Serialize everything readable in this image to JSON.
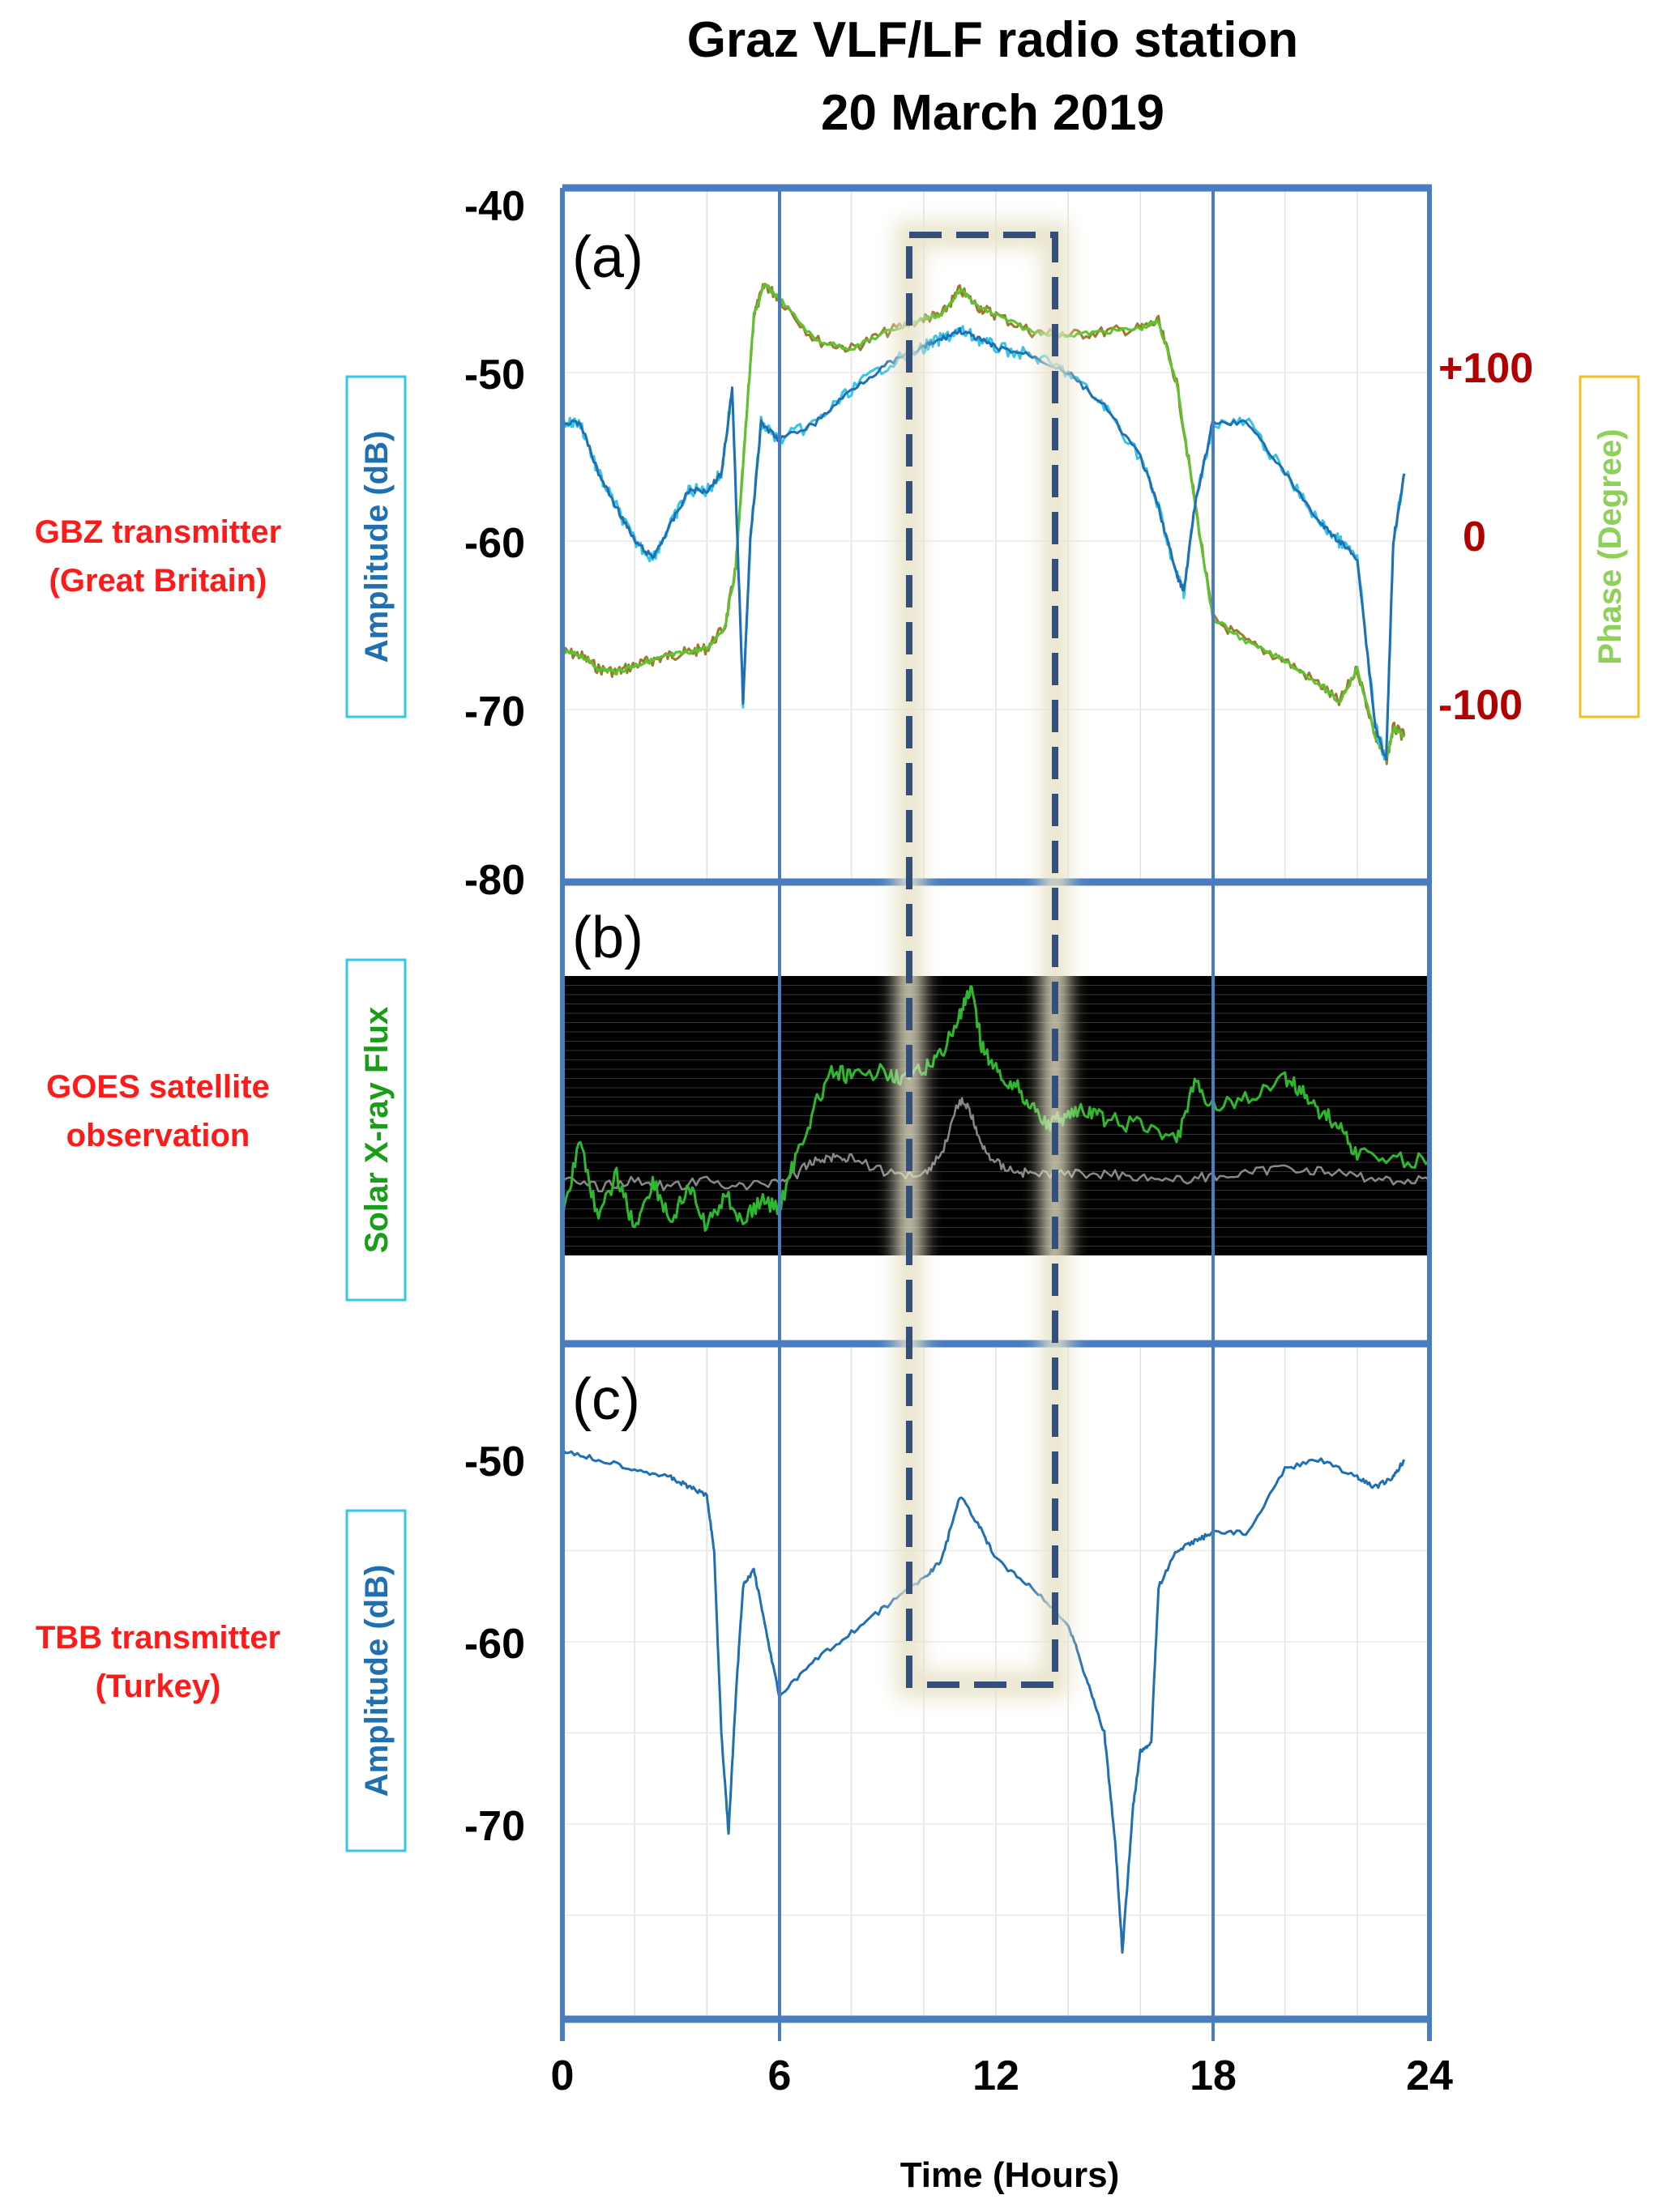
{
  "title_line1": "Graz VLF/LF radio station",
  "title_line2": "20 March 2019",
  "xlabel": "Time (Hours)",
  "x_ticks": [
    "0",
    "6",
    "12",
    "18",
    "24"
  ],
  "colors": {
    "frame": "#4a7dc0",
    "amplitude_line": "#1f6fb3",
    "amplitude_alt": "#35c5e8",
    "phase_line": "#5cc42e",
    "phase_alt": "#9c7a2e",
    "xray_long": "#2eb82e",
    "xray_short": "#888888",
    "right_ticks": "#b00000",
    "side_labels": "#ff1a1a",
    "highlight_box": "#34507a"
  },
  "panels": [
    {
      "letter": "(a)",
      "side_label_1": "GBZ transmitter",
      "side_label_2": "(Great Britain)",
      "ylabel": "Amplitude (dB)",
      "ylabel_right": "Phase (Degree)",
      "y_ticks": [
        "-40",
        "-50",
        "-60",
        "-70",
        "-80"
      ],
      "y2_ticks": [
        "+100",
        "0",
        "-100"
      ]
    },
    {
      "letter": "(b)",
      "side_label_1": "GOES satellite",
      "side_label_2": "observation",
      "ylabel": "Solar X-ray Flux"
    },
    {
      "letter": "(c)",
      "side_label_1": "TBB transmitter",
      "side_label_2": "(Turkey)",
      "ylabel": "Amplitude (dB)",
      "y_ticks": [
        "-50",
        "-60",
        "-70"
      ]
    }
  ],
  "chart_data": [
    {
      "panel": "a",
      "type": "line",
      "xlim": [
        0,
        24
      ],
      "ylim": [
        -80,
        -40
      ],
      "y2lim": [
        -200,
        200
      ],
      "series": [
        {
          "name": "Amplitude (dB)",
          "axis": "left",
          "x": [
            0,
            0.5,
            1,
            1.5,
            2,
            2.5,
            3,
            3.5,
            4,
            4.4,
            4.7,
            5,
            5.2,
            5.5,
            6,
            7,
            8,
            9,
            10,
            10.5,
            11,
            11.5,
            12,
            13,
            14,
            15,
            16,
            16.5,
            17,
            17.2,
            17.5,
            18,
            19,
            20,
            21,
            21.5,
            22,
            22.5,
            22.8,
            23,
            23.3
          ],
          "y": [
            -53,
            -53,
            -56,
            -58,
            -60,
            -61,
            -59,
            -57,
            -57,
            -56,
            -51,
            -69.5,
            -60,
            -53,
            -54,
            -53,
            -51,
            -49.5,
            -48.5,
            -48,
            -47.5,
            -48,
            -48.5,
            -49,
            -50,
            -52,
            -55,
            -58,
            -62,
            -63,
            -58,
            -53,
            -53,
            -56,
            -59,
            -60,
            -61,
            -71,
            -73,
            -60,
            -56
          ]
        },
        {
          "name": "Phase (Degree)",
          "axis": "right",
          "x": [
            0,
            0.5,
            1,
            1.5,
            2,
            2.5,
            3,
            3.5,
            4,
            4.5,
            4.8,
            5,
            5.3,
            5.6,
            6,
            7,
            8,
            9,
            10,
            10.5,
            11,
            11.5,
            12,
            13,
            14,
            15,
            16,
            16.5,
            17,
            17.5,
            18,
            19,
            20,
            21,
            21.5,
            22,
            22.5,
            22.8,
            23,
            23.3
          ],
          "y": [
            -60,
            -62,
            -70,
            -72,
            -68,
            -65,
            -62,
            -60,
            -58,
            -45,
            -10,
            50,
            140,
            158,
            150,
            125,
            120,
            130,
            138,
            140,
            155,
            145,
            140,
            130,
            128,
            130,
            132,
            136,
            100,
            30,
            -40,
            -55,
            -65,
            -80,
            -90,
            -70,
            -110,
            -125,
            -105,
            -110
          ]
        }
      ]
    },
    {
      "panel": "b",
      "type": "line",
      "xlim": [
        0,
        24
      ],
      "series": [
        {
          "name": "Solar X-ray Flux",
          "x": [
            0,
            0.5,
            1,
            1.5,
            2,
            2.5,
            3,
            3.5,
            4,
            4.5,
            5,
            5.5,
            6,
            6.5,
            7,
            7.5,
            8,
            9,
            9.5,
            10,
            10.5,
            11,
            11.3,
            11.6,
            12,
            12.5,
            13,
            13.5,
            14,
            14.5,
            15,
            16,
            17,
            17.5,
            18,
            19,
            20,
            20.5,
            21,
            21.5,
            22,
            23,
            24
          ],
          "y": [
            0.3,
            0.85,
            0.25,
            0.6,
            0.2,
            0.55,
            0.25,
            0.5,
            0.2,
            0.45,
            0.25,
            0.4,
            0.35,
            0.75,
            1.1,
            1.35,
            1.3,
            1.35,
            1.3,
            1.35,
            1.5,
            1.75,
            1.95,
            1.55,
            1.35,
            1.25,
            1.1,
            0.95,
            1.05,
            1.05,
            1.0,
            0.95,
            0.85,
            1.25,
            1.1,
            1.15,
            1.3,
            1.2,
            1.05,
            0.95,
            0.75,
            0.7,
            0.7
          ]
        },
        {
          "name": "Solar X-ray Flux (short)",
          "x": [
            0,
            1,
            2,
            3,
            4,
            5,
            6,
            6.5,
            7,
            7.5,
            8,
            9,
            10,
            10.5,
            11,
            11.3,
            11.6,
            12,
            12.5,
            13,
            14,
            15,
            16,
            17,
            18,
            19,
            20,
            21,
            22,
            23,
            24
          ],
          "y": [
            0.55,
            0.5,
            0.55,
            0.5,
            0.55,
            0.5,
            0.55,
            0.6,
            0.7,
            0.72,
            0.72,
            0.6,
            0.6,
            0.75,
            1.15,
            1.05,
            0.8,
            0.68,
            0.62,
            0.6,
            0.6,
            0.6,
            0.58,
            0.55,
            0.58,
            0.6,
            0.65,
            0.62,
            0.58,
            0.55,
            0.55
          ]
        }
      ]
    },
    {
      "panel": "c",
      "type": "line",
      "xlim": [
        0,
        24
      ],
      "ylim": [
        -80,
        -45
      ],
      "series": [
        {
          "name": "Amplitude (dB)",
          "x": [
            0,
            1,
            2,
            3,
            3.5,
            4,
            4.2,
            4.4,
            4.6,
            4.8,
            5,
            5.3,
            5.6,
            6,
            7,
            8,
            9,
            10,
            10.5,
            11,
            11.5,
            12,
            13,
            14,
            14.5,
            15,
            15.3,
            15.5,
            15.8,
            16,
            16.3,
            16.5,
            17,
            17.5,
            18,
            19,
            20,
            21,
            22,
            22.5,
            23,
            23.3
          ],
          "y": [
            -49.5,
            -50,
            -50.5,
            -51,
            -51.5,
            -52,
            -55,
            -65,
            -70.5,
            -63,
            -57,
            -56,
            -59,
            -63,
            -61,
            -59.5,
            -58,
            -56.5,
            -55.5,
            -52,
            -53.5,
            -55.5,
            -57,
            -59,
            -62,
            -65,
            -71,
            -77,
            -69,
            -66,
            -65.5,
            -57,
            -55,
            -54.5,
            -54,
            -54,
            -50.5,
            -50,
            -51,
            -51.5,
            -51,
            -50
          ]
        }
      ]
    }
  ]
}
